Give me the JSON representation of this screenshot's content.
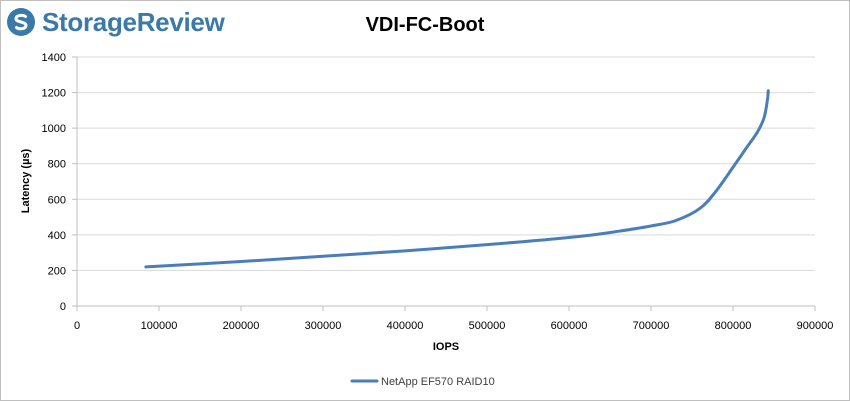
{
  "brand": {
    "logo_text": "StorageReview",
    "logo_color": "#3b79a8"
  },
  "chart_data": {
    "type": "line",
    "title": "VDI-FC-Boot",
    "xlabel": "IOPS",
    "ylabel": "Latency (µs)",
    "xlim": [
      0,
      900000
    ],
    "ylim": [
      0,
      1400
    ],
    "xticks": [
      0,
      100000,
      200000,
      300000,
      400000,
      500000,
      600000,
      700000,
      800000,
      900000
    ],
    "yticks": [
      0,
      200,
      400,
      600,
      800,
      1000,
      1200,
      1400
    ],
    "grid": "horizontal",
    "legend_position": "bottom",
    "series": [
      {
        "name": "NetApp EF570 RAID10",
        "color": "#4a7ebb",
        "x": [
          84000,
          200000,
          300000,
          400000,
          500000,
          560000,
          620000,
          660000,
          700000,
          730000,
          760000,
          780000,
          800000,
          815000,
          830000,
          838000,
          842000,
          843000
        ],
        "y": [
          220,
          250,
          280,
          310,
          345,
          368,
          395,
          420,
          450,
          480,
          550,
          650,
          780,
          880,
          980,
          1060,
          1160,
          1210
        ]
      }
    ]
  }
}
